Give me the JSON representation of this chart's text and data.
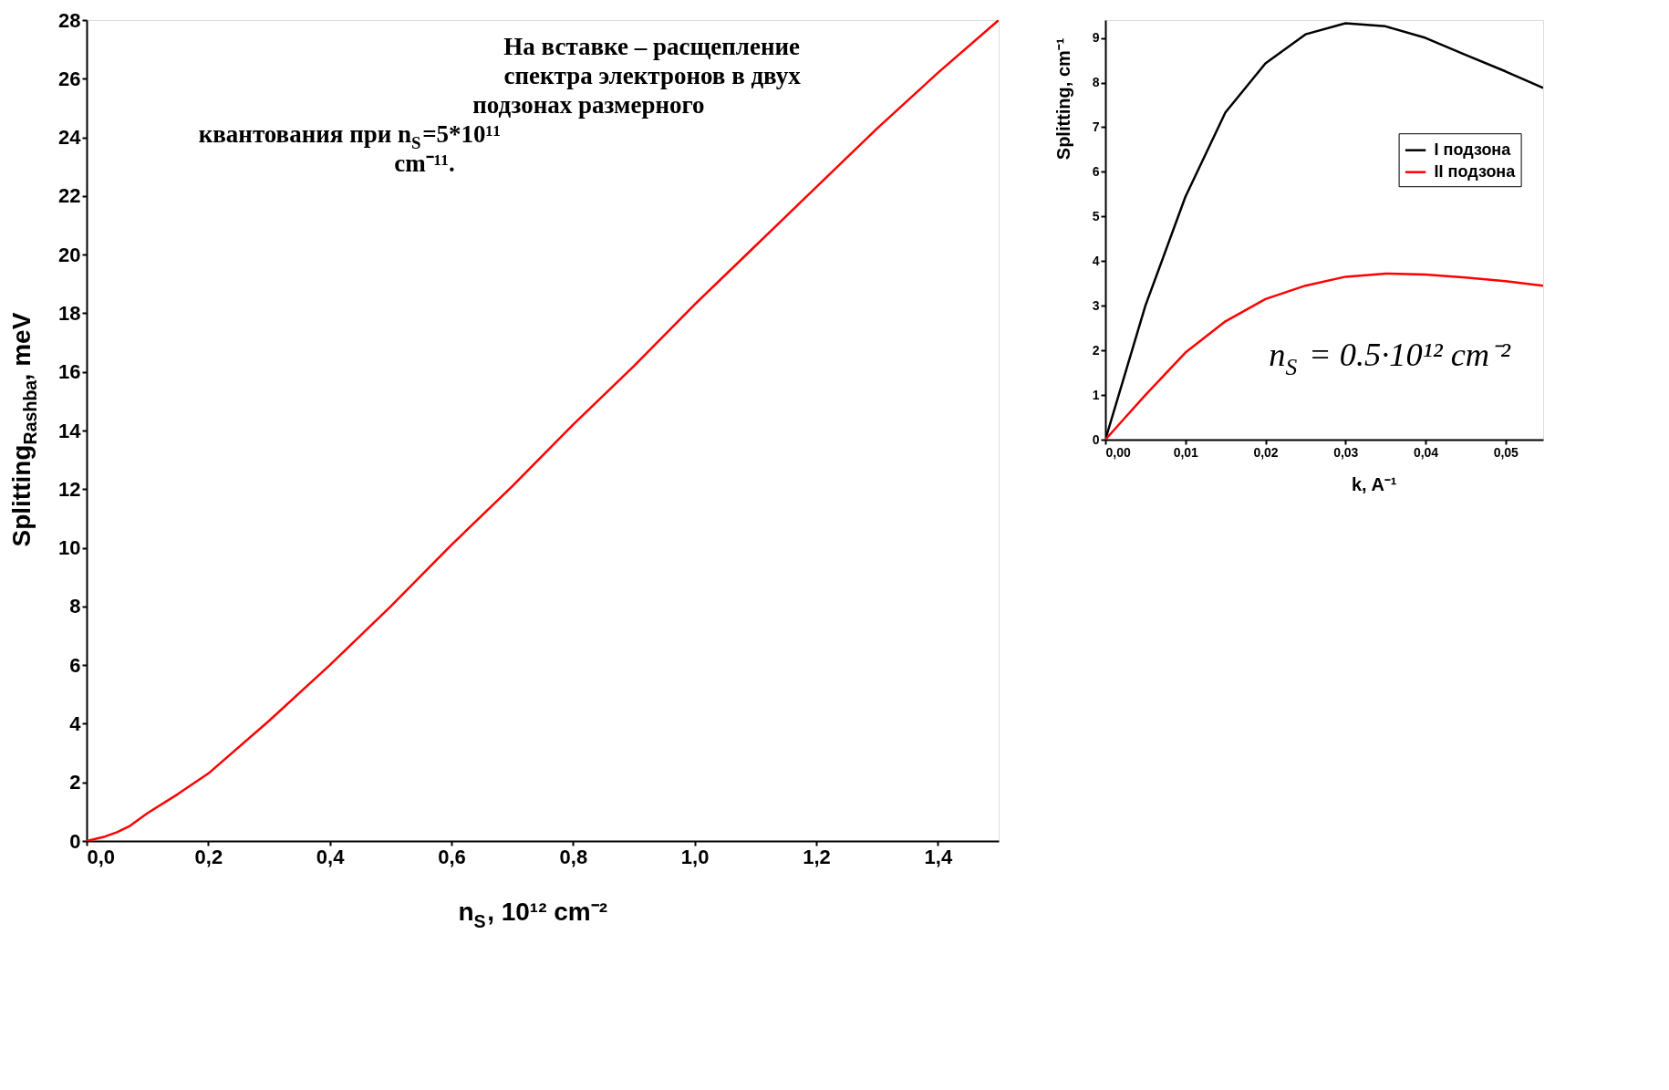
{
  "chart_data": [
    {
      "type": "line",
      "xlabel": "n$_{S}$, 10¹² cm⁻²",
      "ylabel": "Splitting$_{Rashba}$,  meV",
      "x": [
        0,
        0.03,
        0.05,
        0.07,
        0.1,
        0.15,
        0.2,
        0.3,
        0.4,
        0.5,
        0.6,
        0.7,
        0.8,
        0.9,
        1.0,
        1.1,
        1.2,
        1.3,
        1.4,
        1.5
      ],
      "series": [
        {
          "color": "#ff0000",
          "values": [
            0,
            0.15,
            0.3,
            0.5,
            0.95,
            1.6,
            2.3,
            4.1,
            6.0,
            8.0,
            10.1,
            12.1,
            14.2,
            16.2,
            18.3,
            20.3,
            22.3,
            24.3,
            26.2,
            28.0
          ]
        }
      ],
      "xlim": [
        0,
        1.5
      ],
      "ylim": [
        0,
        28
      ],
      "xticks": [
        {
          "value": 0,
          "label": "0,0"
        },
        {
          "value": 0.2,
          "label": "0,2"
        },
        {
          "value": 0.4,
          "label": "0,4"
        },
        {
          "value": 0.6,
          "label": "0,6"
        },
        {
          "value": 0.8,
          "label": "0,8"
        },
        {
          "value": 1.0,
          "label": "1,0"
        },
        {
          "value": 1.2,
          "label": "1,2"
        },
        {
          "value": 1.4,
          "label": "1,4"
        }
      ],
      "yticks": [
        0,
        2,
        4,
        6,
        8,
        10,
        12,
        14,
        16,
        18,
        20,
        22,
        24,
        26,
        28
      ],
      "annotations": [
        "На вставке – расщепление спектра электронов в двух подзонах размерного квантования при n$_{S}$=5*10¹¹ cm⁻¹¹."
      ],
      "grid": false,
      "legend": false
    },
    {
      "type": "line",
      "xlabel": "k, A⁻¹",
      "ylabel": "Splitting, cm⁻¹",
      "x": [
        0,
        0.0025,
        0.005,
        0.01,
        0.015,
        0.02,
        0.025,
        0.03,
        0.035,
        0.04,
        0.045,
        0.05,
        0.0547
      ],
      "series": [
        {
          "name": "I подзона",
          "color": "#000000",
          "values": [
            0,
            1.5,
            3.0,
            5.44,
            7.33,
            8.43,
            9.08,
            9.33,
            9.26,
            9.0,
            8.62,
            8.25,
            7.88
          ]
        },
        {
          "name": "II подзона",
          "color": "#ff0000",
          "values": [
            0,
            0.5,
            1.0,
            1.95,
            2.65,
            3.15,
            3.45,
            3.65,
            3.72,
            3.7,
            3.63,
            3.55,
            3.45
          ]
        }
      ],
      "xlim": [
        0,
        0.0547
      ],
      "ylim": [
        0,
        9.4
      ],
      "xticks": [
        {
          "value": 0,
          "label": "0,00"
        },
        {
          "value": 0.01,
          "label": "0,01"
        },
        {
          "value": 0.02,
          "label": "0,02"
        },
        {
          "value": 0.03,
          "label": "0,03"
        },
        {
          "value": 0.04,
          "label": "0,04"
        },
        {
          "value": 0.05,
          "label": "0,05"
        }
      ],
      "yticks": [
        0,
        1,
        2,
        3,
        4,
        5,
        6,
        7,
        8,
        9
      ],
      "annotations": [
        "n$_{S}$ = 0.5·10¹² cm⁻²"
      ],
      "grid": false,
      "legend": "top right"
    }
  ]
}
